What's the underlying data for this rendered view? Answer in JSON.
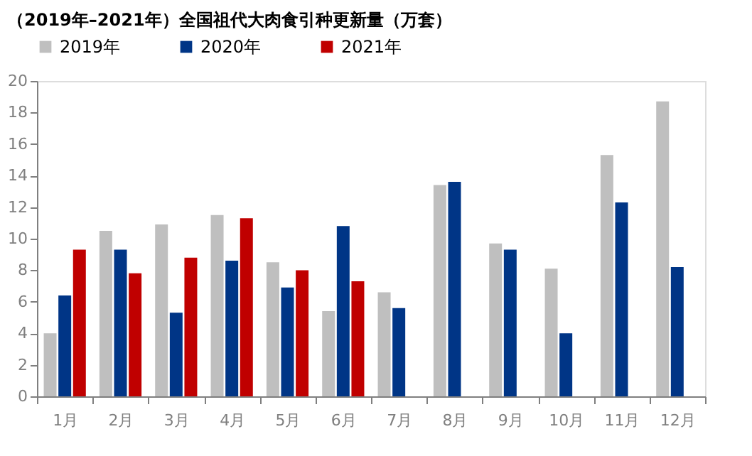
{
  "chart_data": {
    "type": "bar",
    "title": "（2019年–2021年）全国祖代大肉食引种更新量（万套）",
    "categories": [
      "1月",
      "2月",
      "3月",
      "4月",
      "5月",
      "6月",
      "7月",
      "8月",
      "9月",
      "10月",
      "11月",
      "12月"
    ],
    "series": [
      {
        "name": "2019年",
        "color": "#bfbfbf",
        "values": [
          4.0,
          10.5,
          10.9,
          11.5,
          8.5,
          5.4,
          6.6,
          13.4,
          9.7,
          8.1,
          15.3,
          18.7
        ]
      },
      {
        "name": "2020年",
        "color": "#003586",
        "values": [
          6.4,
          9.3,
          5.3,
          8.6,
          6.9,
          10.8,
          5.6,
          13.6,
          9.3,
          4.0,
          12.3,
          8.2
        ]
      },
      {
        "name": "2021年",
        "color": "#c00000",
        "values": [
          9.3,
          7.8,
          8.8,
          11.3,
          8.0,
          7.3,
          null,
          null,
          null,
          null,
          null,
          null
        ]
      }
    ],
    "ylim": [
      0,
      20
    ],
    "yticks": [
      0,
      2,
      4,
      6,
      8,
      10,
      12,
      14,
      16,
      18,
      20
    ],
    "grid": false,
    "legend": "top"
  }
}
